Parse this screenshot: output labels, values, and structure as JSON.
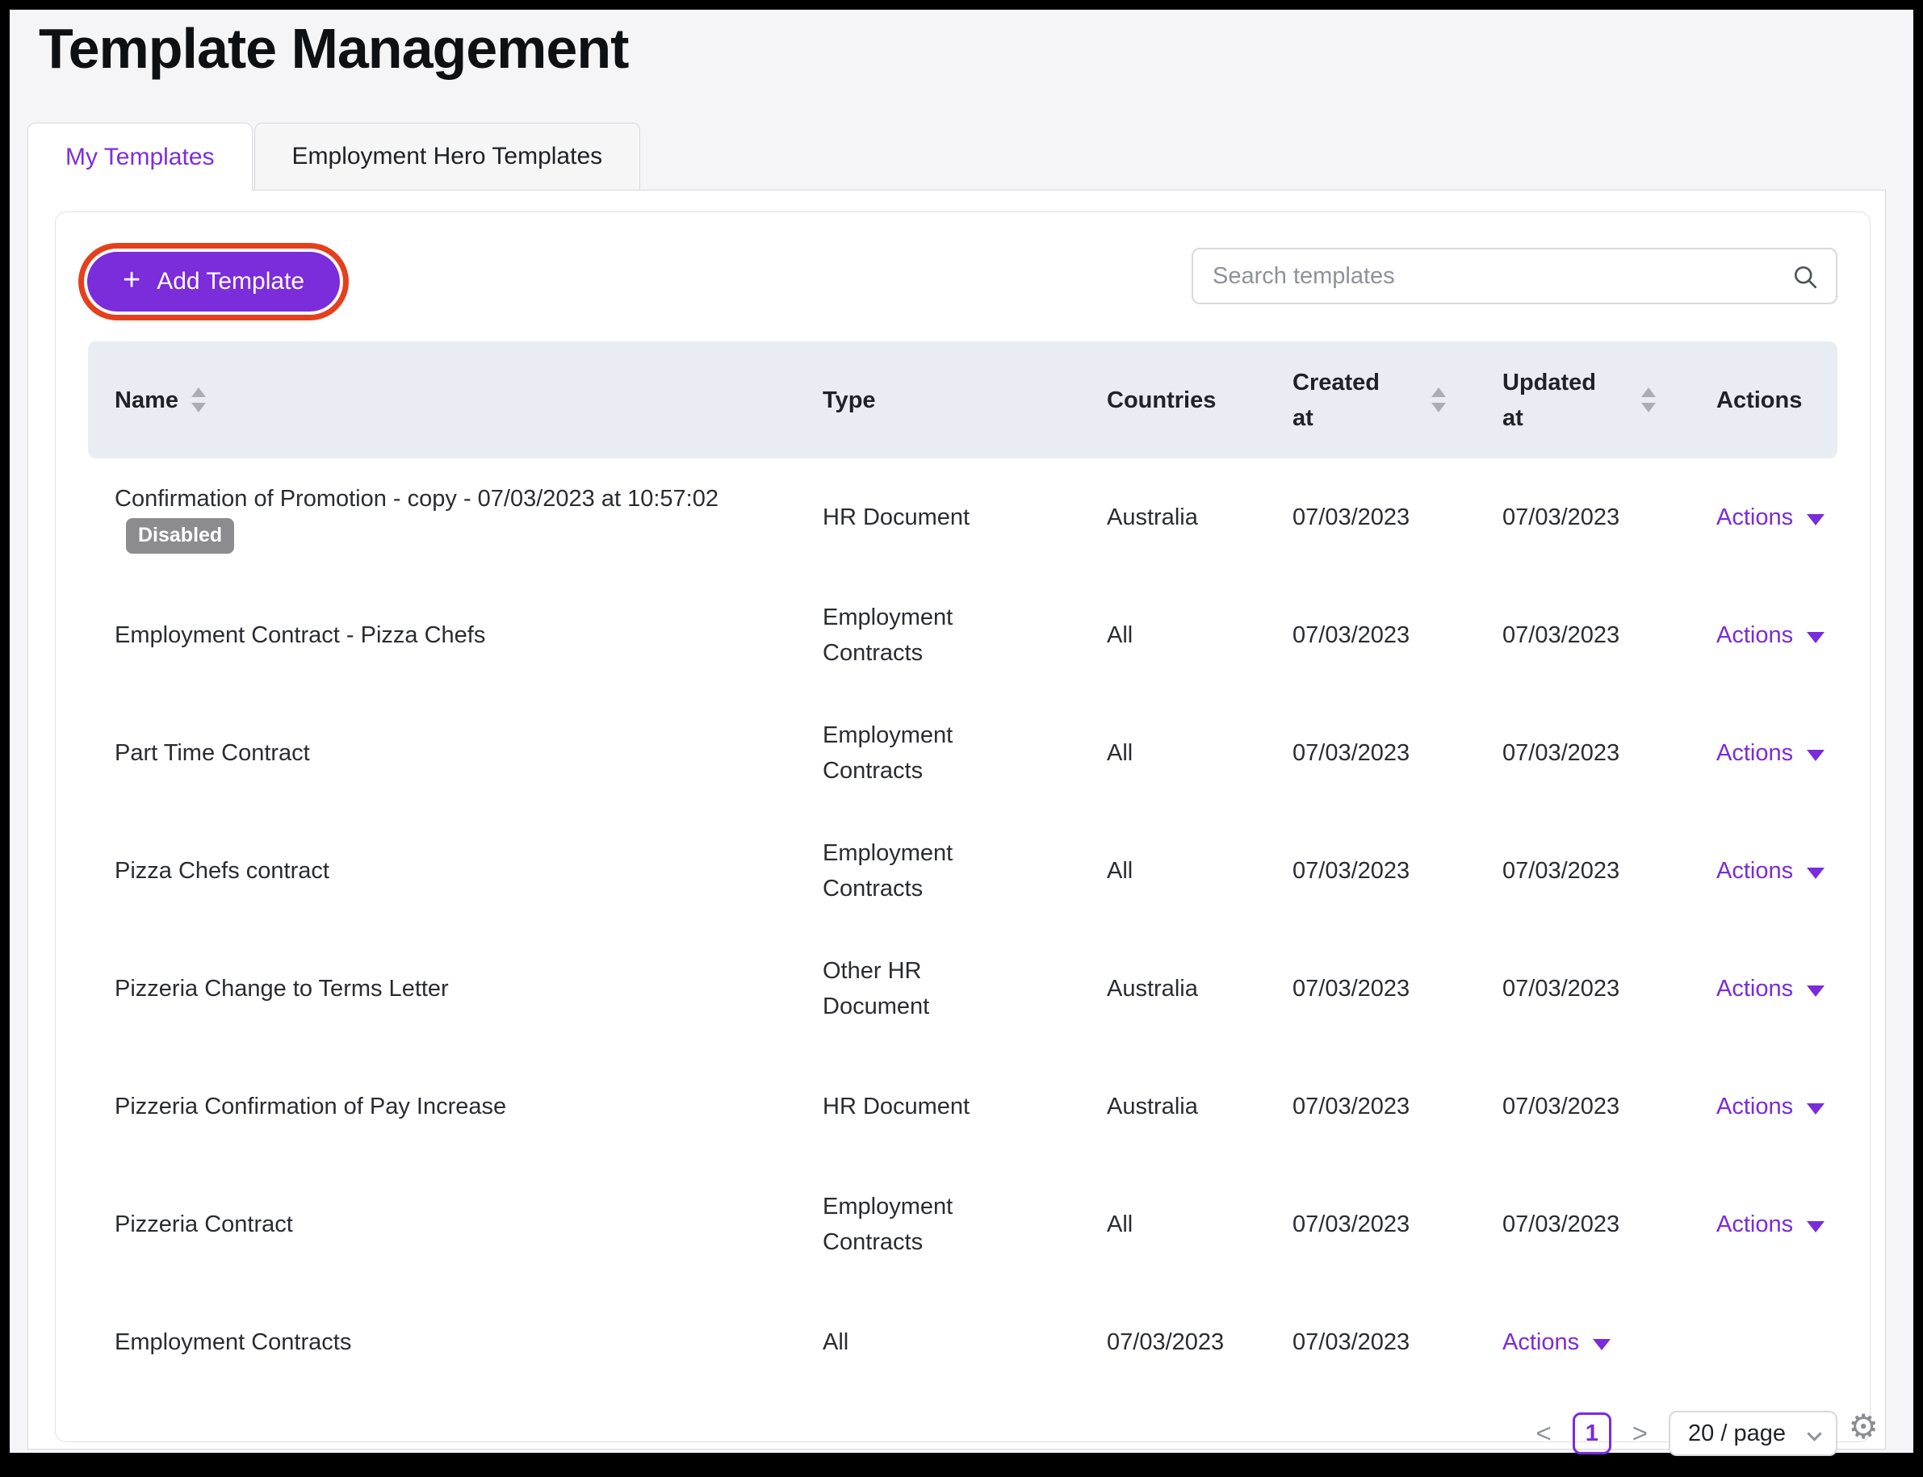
{
  "page": {
    "title": "Template Management"
  },
  "tabs": [
    {
      "label": "My Templates",
      "active": true
    },
    {
      "label": "Employment Hero Templates",
      "active": false
    }
  ],
  "toolbar": {
    "add_button_label": "Add Template",
    "plus_icon": "+",
    "search_placeholder": "Search templates"
  },
  "table": {
    "columns": [
      {
        "label": "Name",
        "sortable": true
      },
      {
        "label": "Type",
        "sortable": false
      },
      {
        "label": "Countries",
        "sortable": false
      },
      {
        "label": "Created at",
        "sortable": true
      },
      {
        "label": "Updated at",
        "sortable": true
      },
      {
        "label": "Actions",
        "sortable": false
      }
    ],
    "actions_label": "Actions",
    "rows": [
      {
        "name": "Confirmation of Promotion - copy - 07/03/2023 at 10:57:02",
        "badge": "Disabled",
        "type": "HR Document",
        "countries": "Australia",
        "created_at": "07/03/2023",
        "updated_at": "07/03/2023",
        "actions_column": "actions"
      },
      {
        "name": "Employment Contract - Pizza Chefs",
        "badge": null,
        "type": "Employment Contracts",
        "countries": "All",
        "created_at": "07/03/2023",
        "updated_at": "07/03/2023",
        "actions_column": "actions"
      },
      {
        "name": "Part Time Contract",
        "badge": null,
        "type": "Employment Contracts",
        "countries": "All",
        "created_at": "07/03/2023",
        "updated_at": "07/03/2023",
        "actions_column": "actions"
      },
      {
        "name": "Pizza Chefs contract",
        "badge": null,
        "type": "Employment Contracts",
        "countries": "All",
        "created_at": "07/03/2023",
        "updated_at": "07/03/2023",
        "actions_column": "actions"
      },
      {
        "name": "Pizzeria Change to Terms Letter",
        "badge": null,
        "type": "Other HR Document",
        "countries": "Australia",
        "created_at": "07/03/2023",
        "updated_at": "07/03/2023",
        "actions_column": "actions"
      },
      {
        "name": "Pizzeria Confirmation of Pay Increase",
        "badge": null,
        "type": "HR Document",
        "countries": "Australia",
        "created_at": "07/03/2023",
        "updated_at": "07/03/2023",
        "actions_column": "actions"
      },
      {
        "name": "Pizzeria Contract",
        "badge": null,
        "type": "Employment Contracts",
        "countries": "All",
        "created_at": "07/03/2023",
        "updated_at": "07/03/2023",
        "actions_column": "actions"
      },
      {
        "name": "Employment Contracts",
        "badge": null,
        "type": "All",
        "countries": "07/03/2023",
        "created_at": "07/03/2023",
        "updated_at": "",
        "actions_column": "updated"
      }
    ]
  },
  "pagination": {
    "prev_label": "<",
    "current_page": "1",
    "next_label": ">",
    "page_size_label": "20 / page"
  },
  "colors": {
    "accent_purple": "#7A2BDB",
    "annotation_red": "#E5401C",
    "table_header_bg": "#E9EDF3",
    "badge_bg": "#8C8C8E",
    "page_bg": "#F5F5F7"
  }
}
